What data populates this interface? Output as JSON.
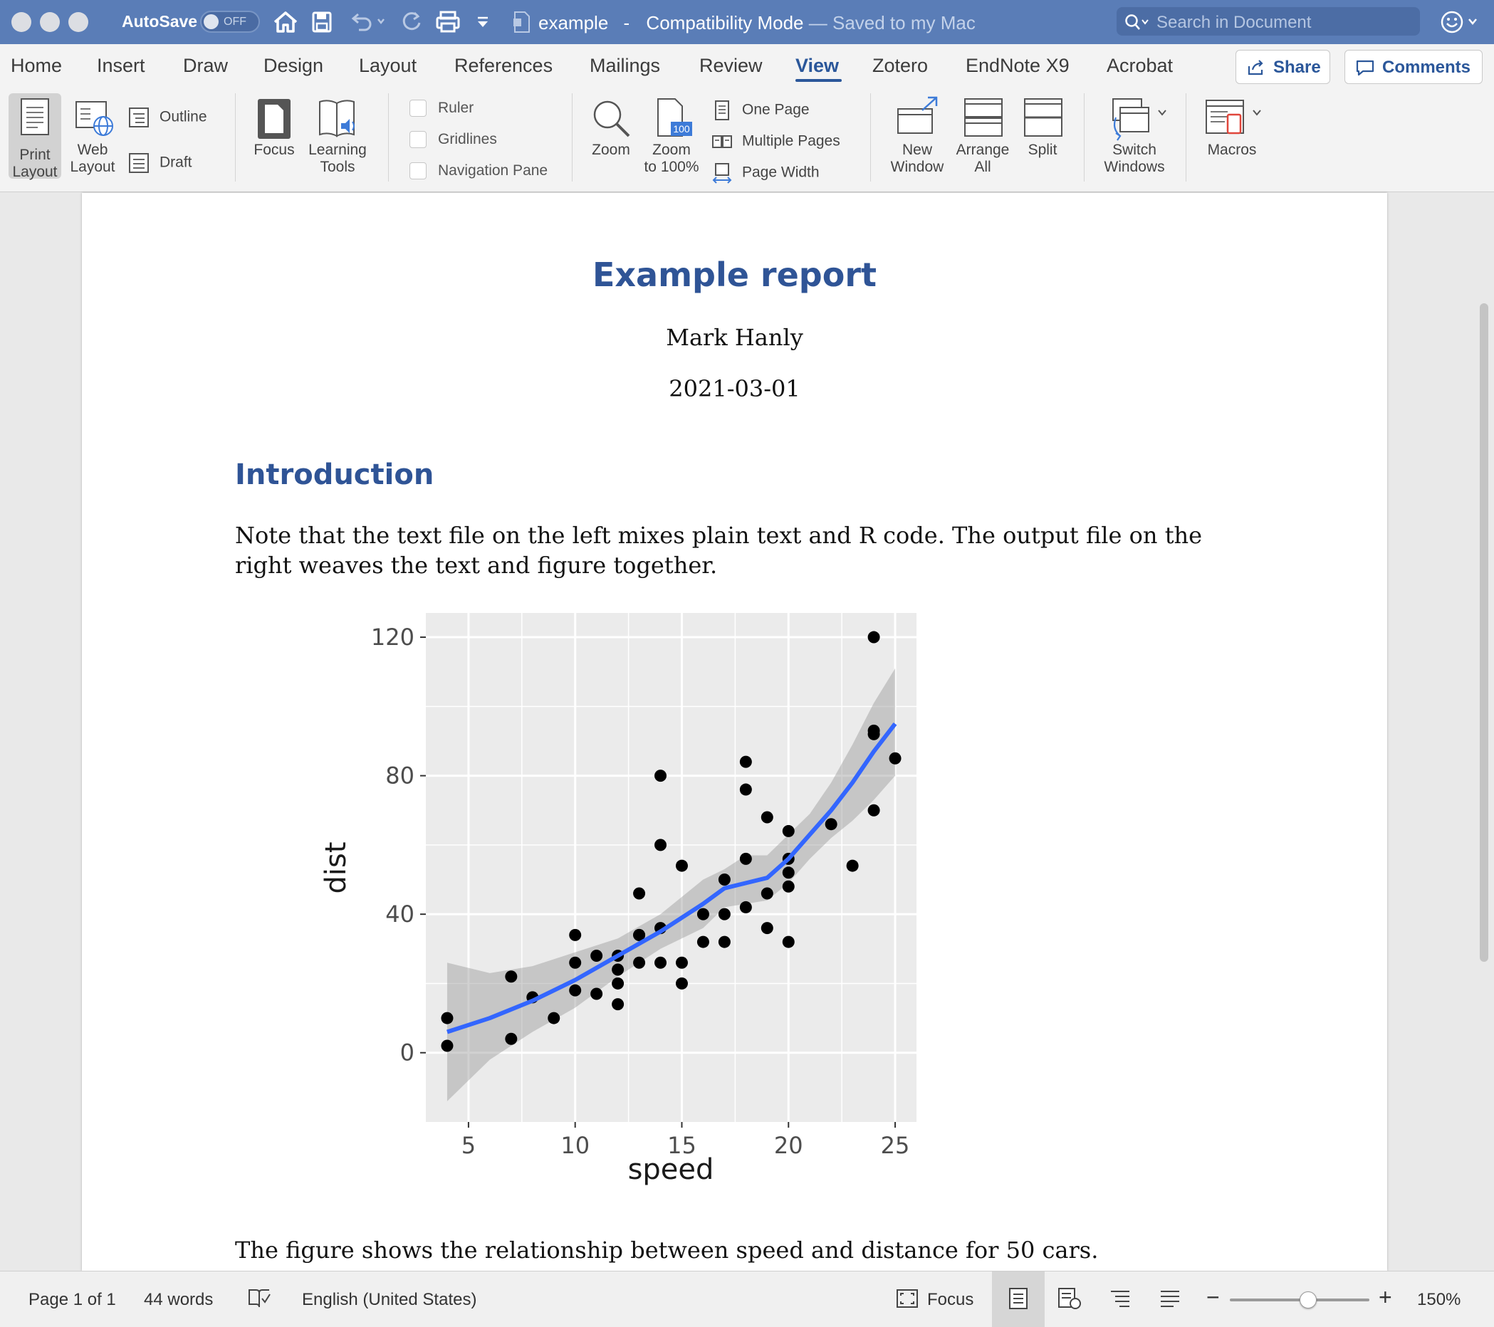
{
  "titlebar": {
    "autosave_label": "AutoSave",
    "autosave_state": "OFF",
    "doc_name": "example",
    "separator": "-",
    "mode": "Compatibility Mode",
    "saved_status": "— Saved to my Mac",
    "search_placeholder": "Search in Document"
  },
  "tabs": [
    {
      "label": "Home"
    },
    {
      "label": "Insert"
    },
    {
      "label": "Draw"
    },
    {
      "label": "Design"
    },
    {
      "label": "Layout"
    },
    {
      "label": "References"
    },
    {
      "label": "Mailings"
    },
    {
      "label": "Review"
    },
    {
      "label": "View",
      "active": true
    },
    {
      "label": "Zotero"
    },
    {
      "label": "EndNote X9"
    },
    {
      "label": "Acrobat"
    }
  ],
  "header_buttons": {
    "share": "Share",
    "comments": "Comments"
  },
  "ribbon": {
    "print_layout": [
      "Print",
      "Layout"
    ],
    "web_layout": [
      "Web",
      "Layout"
    ],
    "outline": "Outline",
    "draft": "Draft",
    "focus": "Focus",
    "learning_tools": [
      "Learning",
      "Tools"
    ],
    "ruler": "Ruler",
    "gridlines": "Gridlines",
    "navigation_pane": "Navigation Pane",
    "zoom": "Zoom",
    "zoom_100": [
      "Zoom",
      "to 100%"
    ],
    "zoom_100_badge": "100",
    "one_page": "One Page",
    "multiple_pages": "Multiple Pages",
    "page_width": "Page Width",
    "new_window": [
      "New",
      "Window"
    ],
    "arrange_all": [
      "Arrange",
      "All"
    ],
    "split": "Split",
    "switch_windows": [
      "Switch",
      "Windows"
    ],
    "macros": "Macros"
  },
  "document": {
    "title": "Example report",
    "author": "Mark Hanly",
    "date": "2021-03-01",
    "heading": "Introduction",
    "paragraph": "Note that the text file on the left mixes plain text and R code. The output file on the right weaves the text and figure together.",
    "caption": "The figure shows the relationship between speed and distance for 50 cars."
  },
  "chart_data": {
    "type": "scatter",
    "xlabel": "speed",
    "ylabel": "dist",
    "xlim": [
      3,
      26
    ],
    "ylim": [
      -20,
      127
    ],
    "xticks": [
      5,
      10,
      15,
      20,
      25
    ],
    "yticks": [
      0,
      40,
      80,
      120
    ],
    "grid": true,
    "points": [
      [
        4,
        2
      ],
      [
        4,
        10
      ],
      [
        7,
        4
      ],
      [
        7,
        22
      ],
      [
        8,
        16
      ],
      [
        9,
        10
      ],
      [
        10,
        18
      ],
      [
        10,
        26
      ],
      [
        10,
        34
      ],
      [
        11,
        17
      ],
      [
        11,
        28
      ],
      [
        12,
        14
      ],
      [
        12,
        20
      ],
      [
        12,
        24
      ],
      [
        12,
        28
      ],
      [
        13,
        26
      ],
      [
        13,
        34
      ],
      [
        13,
        34
      ],
      [
        13,
        46
      ],
      [
        14,
        26
      ],
      [
        14,
        36
      ],
      [
        14,
        60
      ],
      [
        14,
        80
      ],
      [
        15,
        20
      ],
      [
        15,
        26
      ],
      [
        15,
        54
      ],
      [
        16,
        32
      ],
      [
        16,
        40
      ],
      [
        17,
        32
      ],
      [
        17,
        40
      ],
      [
        17,
        50
      ],
      [
        18,
        42
      ],
      [
        18,
        56
      ],
      [
        18,
        76
      ],
      [
        18,
        84
      ],
      [
        19,
        36
      ],
      [
        19,
        46
      ],
      [
        19,
        68
      ],
      [
        20,
        32
      ],
      [
        20,
        48
      ],
      [
        20,
        52
      ],
      [
        20,
        56
      ],
      [
        20,
        64
      ],
      [
        22,
        66
      ],
      [
        23,
        54
      ],
      [
        24,
        70
      ],
      [
        24,
        92
      ],
      [
        24,
        93
      ],
      [
        24,
        120
      ],
      [
        25,
        85
      ]
    ],
    "smooth_fit": [
      [
        4,
        6
      ],
      [
        6,
        10
      ],
      [
        8,
        15
      ],
      [
        10,
        21
      ],
      [
        12,
        28
      ],
      [
        14,
        35
      ],
      [
        16,
        43
      ],
      [
        17,
        47.5
      ],
      [
        18,
        49
      ],
      [
        19,
        50.5
      ],
      [
        20,
        56
      ],
      [
        21,
        63
      ],
      [
        22,
        70
      ],
      [
        23,
        78
      ],
      [
        24,
        87
      ],
      [
        25,
        95
      ]
    ],
    "smooth_se": {
      "upper": [
        [
          4,
          26
        ],
        [
          6,
          23
        ],
        [
          8,
          25
        ],
        [
          10,
          29
        ],
        [
          12,
          33
        ],
        [
          14,
          40
        ],
        [
          16,
          50
        ],
        [
          17,
          53
        ],
        [
          18,
          57
        ],
        [
          19,
          57
        ],
        [
          20,
          63
        ],
        [
          21,
          69
        ],
        [
          22,
          78
        ],
        [
          23,
          89
        ],
        [
          24,
          101
        ],
        [
          25,
          111
        ]
      ],
      "lower": [
        [
          4,
          -14
        ],
        [
          6,
          -2
        ],
        [
          8,
          6
        ],
        [
          10,
          13
        ],
        [
          12,
          22
        ],
        [
          14,
          30
        ],
        [
          16,
          36
        ],
        [
          17,
          42
        ],
        [
          18,
          43
        ],
        [
          19,
          44
        ],
        [
          20,
          49
        ],
        [
          21,
          56
        ],
        [
          22,
          62
        ],
        [
          23,
          67
        ],
        [
          24,
          73
        ],
        [
          25,
          80
        ]
      ]
    },
    "colors": {
      "panel": "#ebebeb",
      "grid": "#ffffff",
      "point": "#000000",
      "line": "#3366ff",
      "ribbon": "#999999"
    }
  },
  "statusbar": {
    "page": "Page 1 of 1",
    "words": "44 words",
    "language": "English (United States)",
    "focus": "Focus",
    "zoom": "150%",
    "zoom_fraction": 0.56
  }
}
